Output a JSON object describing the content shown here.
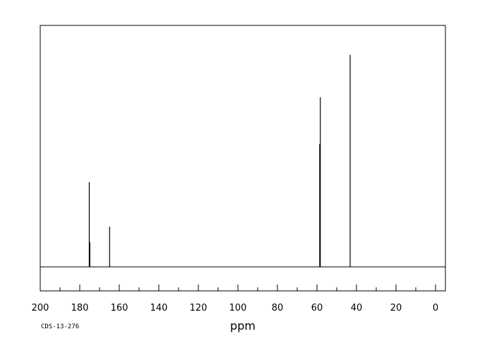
{
  "chart_data": {
    "type": "line",
    "title": "",
    "xlabel": "ppm",
    "ylabel": "",
    "xlim": [
      200,
      -5
    ],
    "x_reversed": true,
    "xticks": [
      200,
      180,
      160,
      140,
      120,
      100,
      80,
      60,
      40,
      20,
      0
    ],
    "grid": false,
    "legend": "none",
    "series": [
      {
        "peaks": [
          {
            "ppm": 175.2,
            "height": 0.38
          },
          {
            "ppm": 174.9,
            "height": 0.11
          },
          {
            "ppm": 164.9,
            "height": 0.18
          },
          {
            "ppm": 58.3,
            "height": 0.76
          },
          {
            "ppm": 58.6,
            "height": 0.55
          },
          {
            "ppm": 43.2,
            "height": 0.95
          }
        ]
      }
    ],
    "footnote": "CDS-13-276"
  },
  "colors": {
    "line": "#000000",
    "frame": "#000000",
    "background": "#ffffff"
  }
}
